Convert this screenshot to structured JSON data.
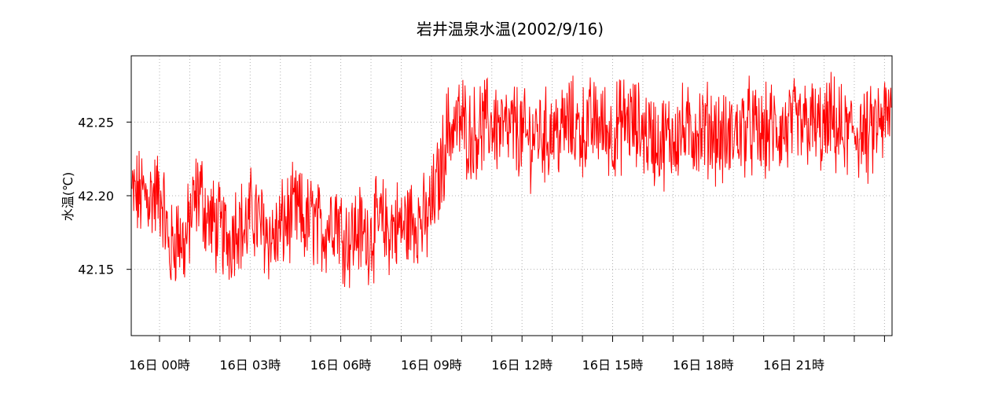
{
  "chart_data": {
    "type": "line",
    "title": "岩井温泉水温(2002/9/16)",
    "ylabel": "水温(℃)",
    "xlabel": "",
    "ylim": [
      42.105,
      42.295
    ],
    "xlim": [
      0,
      24.25
    ],
    "grid": true,
    "y_ticks": [
      {
        "value": 42.15,
        "label": "42.15"
      },
      {
        "value": 42.2,
        "label": "42.20"
      },
      {
        "value": 42.25,
        "label": "42.25"
      }
    ],
    "x_ticks": [
      {
        "value": 0,
        "label": "16日 00時"
      },
      {
        "value": 3,
        "label": "16日 03時"
      },
      {
        "value": 6,
        "label": "16日 06時"
      },
      {
        "value": 9,
        "label": "16日 09時"
      },
      {
        "value": 12,
        "label": "16日 12時"
      },
      {
        "value": 15,
        "label": "16日 15時"
      },
      {
        "value": 18,
        "label": "16日 18時"
      },
      {
        "value": 21,
        "label": "16日 21時"
      }
    ],
    "series": [
      {
        "color": "#ff0000",
        "unit_hours": true,
        "points": [
          [
            0.0,
            42.2
          ],
          [
            0.25,
            42.16
          ],
          [
            0.5,
            42.175
          ],
          [
            0.75,
            42.165
          ],
          [
            1.0,
            42.19
          ],
          [
            1.25,
            42.205
          ],
          [
            1.5,
            42.185
          ],
          [
            1.75,
            42.18
          ],
          [
            2.0,
            42.175
          ],
          [
            2.25,
            42.17
          ],
          [
            2.5,
            42.185
          ],
          [
            2.75,
            42.175
          ],
          [
            3.0,
            42.19
          ],
          [
            3.25,
            42.18
          ],
          [
            3.5,
            42.175
          ],
          [
            3.75,
            42.17
          ],
          [
            4.0,
            42.18
          ],
          [
            4.25,
            42.185
          ],
          [
            4.5,
            42.19
          ],
          [
            4.75,
            42.18
          ],
          [
            5.0,
            42.185
          ],
          [
            5.25,
            42.175
          ],
          [
            5.5,
            42.18
          ],
          [
            5.75,
            42.19
          ],
          [
            6.0,
            42.175
          ],
          [
            6.25,
            42.17
          ],
          [
            6.5,
            42.178
          ],
          [
            6.75,
            42.172
          ],
          [
            7.0,
            42.175
          ],
          [
            7.25,
            42.182
          ],
          [
            7.5,
            42.176
          ],
          [
            7.75,
            42.18
          ],
          [
            8.0,
            42.178
          ],
          [
            8.25,
            42.183
          ],
          [
            8.5,
            42.185
          ],
          [
            8.75,
            42.18
          ],
          [
            9.0,
            42.195
          ],
          [
            9.25,
            42.215
          ],
          [
            9.5,
            42.245
          ],
          [
            9.75,
            42.248
          ],
          [
            10.0,
            42.25
          ],
          [
            10.25,
            42.24
          ],
          [
            10.5,
            42.245
          ],
          [
            10.75,
            42.248
          ],
          [
            11.0,
            42.25
          ],
          [
            11.25,
            42.245
          ],
          [
            11.5,
            42.242
          ],
          [
            11.75,
            42.246
          ],
          [
            12.0,
            42.24
          ],
          [
            12.25,
            42.238
          ],
          [
            12.5,
            42.244
          ],
          [
            12.75,
            42.24
          ],
          [
            13.0,
            42.245
          ],
          [
            13.25,
            42.243
          ],
          [
            13.5,
            42.25
          ],
          [
            13.75,
            42.246
          ],
          [
            14.0,
            42.244
          ],
          [
            14.25,
            42.248
          ],
          [
            14.5,
            42.25
          ],
          [
            14.75,
            42.245
          ],
          [
            15.0,
            42.242
          ],
          [
            15.25,
            42.248
          ],
          [
            15.5,
            42.252
          ],
          [
            15.75,
            42.246
          ],
          [
            16.0,
            42.245
          ],
          [
            16.25,
            42.24
          ],
          [
            16.5,
            42.236
          ],
          [
            16.75,
            42.238
          ],
          [
            17.0,
            42.24
          ],
          [
            17.25,
            42.244
          ],
          [
            17.5,
            42.242
          ],
          [
            17.75,
            42.245
          ],
          [
            18.0,
            42.244
          ],
          [
            18.25,
            42.246
          ],
          [
            18.5,
            42.24
          ],
          [
            18.75,
            42.236
          ],
          [
            19.0,
            42.242
          ],
          [
            19.25,
            42.244
          ],
          [
            19.5,
            42.248
          ],
          [
            19.75,
            42.242
          ],
          [
            20.0,
            42.24
          ],
          [
            20.25,
            42.246
          ],
          [
            20.5,
            42.243
          ],
          [
            20.75,
            42.244
          ],
          [
            21.0,
            42.248
          ],
          [
            21.25,
            42.245
          ],
          [
            21.5,
            42.25
          ],
          [
            21.75,
            42.246
          ],
          [
            22.0,
            42.242
          ],
          [
            22.25,
            42.25
          ],
          [
            22.5,
            42.244
          ],
          [
            22.75,
            42.24
          ],
          [
            23.0,
            42.245
          ],
          [
            23.25,
            42.242
          ],
          [
            23.5,
            42.238
          ],
          [
            23.75,
            42.248
          ],
          [
            24.0,
            42.25
          ],
          [
            24.25,
            42.255
          ]
        ]
      }
    ]
  }
}
